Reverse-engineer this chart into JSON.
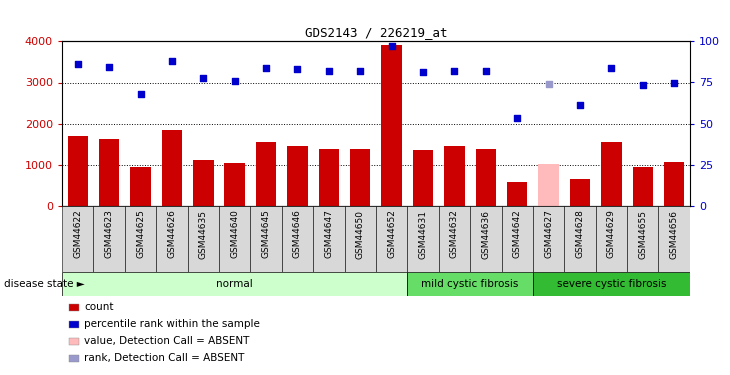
{
  "title": "GDS2143 / 226219_at",
  "samples": [
    "GSM44622",
    "GSM44623",
    "GSM44625",
    "GSM44626",
    "GSM44635",
    "GSM44640",
    "GSM44645",
    "GSM44646",
    "GSM44647",
    "GSM44650",
    "GSM44652",
    "GSM44631",
    "GSM44632",
    "GSM44636",
    "GSM44642",
    "GSM44627",
    "GSM44628",
    "GSM44629",
    "GSM44655",
    "GSM44656"
  ],
  "count_values": [
    1700,
    1620,
    950,
    1860,
    1130,
    1050,
    1560,
    1460,
    1400,
    1400,
    3900,
    1360,
    1460,
    1400,
    580,
    1030,
    660,
    1550,
    960,
    1080
  ],
  "rank_values": [
    3450,
    3370,
    2720,
    3530,
    3100,
    3040,
    3360,
    3330,
    3280,
    3280,
    3880,
    3260,
    3280,
    3270,
    2130,
    2960,
    2450,
    3360,
    2940,
    2980
  ],
  "count_colors": [
    "#cc0000",
    "#cc0000",
    "#cc0000",
    "#cc0000",
    "#cc0000",
    "#cc0000",
    "#cc0000",
    "#cc0000",
    "#cc0000",
    "#cc0000",
    "#cc0000",
    "#cc0000",
    "#cc0000",
    "#cc0000",
    "#cc0000",
    "#ffbbbb",
    "#cc0000",
    "#cc0000",
    "#cc0000",
    "#cc0000"
  ],
  "rank_colors": [
    "#0000cc",
    "#0000cc",
    "#0000cc",
    "#0000cc",
    "#0000cc",
    "#0000cc",
    "#0000cc",
    "#0000cc",
    "#0000cc",
    "#0000cc",
    "#0000cc",
    "#0000cc",
    "#0000cc",
    "#0000cc",
    "#0000cc",
    "#9999cc",
    "#0000cc",
    "#0000cc",
    "#0000cc",
    "#0000cc"
  ],
  "groups": [
    {
      "label": "normal",
      "start": 0,
      "end": 11,
      "color": "#ccffcc"
    },
    {
      "label": "mild cystic fibrosis",
      "start": 11,
      "end": 15,
      "color": "#66dd66"
    },
    {
      "label": "severe cystic fibrosis",
      "start": 15,
      "end": 20,
      "color": "#33bb33"
    }
  ],
  "ylim_left": [
    0,
    4000
  ],
  "ylim_right": [
    0,
    100
  ],
  "yticks_left": [
    0,
    1000,
    2000,
    3000,
    4000
  ],
  "yticks_right": [
    0,
    25,
    50,
    75,
    100
  ],
  "bar_width": 0.65,
  "legend_items": [
    {
      "label": "count",
      "color": "#cc0000"
    },
    {
      "label": "percentile rank within the sample",
      "color": "#0000cc"
    },
    {
      "label": "value, Detection Call = ABSENT",
      "color": "#ffbbbb"
    },
    {
      "label": "rank, Detection Call = ABSENT",
      "color": "#9999cc"
    }
  ],
  "disease_state_label": "disease state"
}
